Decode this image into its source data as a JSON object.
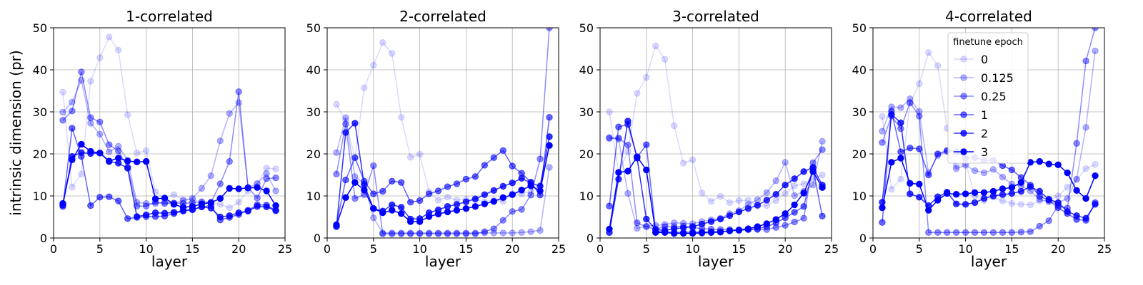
{
  "colors": {
    "series": "#0000ff",
    "grid": "#b0b0b0",
    "axis": "#000000"
  },
  "legend": {
    "title": "finetune epoch",
    "placement": "in-panel-4-upper-center"
  },
  "chart_data": [
    {
      "type": "line",
      "title": "1-correlated",
      "xlabel": "layer",
      "ylabel": "intrinsic dimension (pr)",
      "xlim": [
        0,
        25
      ],
      "ylim": [
        0,
        50
      ],
      "xticks": [
        0,
        5,
        10,
        15,
        20,
        25
      ],
      "yticks": [
        0,
        10,
        20,
        30,
        40,
        50
      ],
      "grid": true,
      "x": [
        1,
        2,
        3,
        4,
        5,
        6,
        7,
        8,
        9,
        10,
        11,
        12,
        13,
        14,
        15,
        16,
        17,
        18,
        19,
        20,
        21,
        22,
        23,
        24
      ],
      "series": [
        {
          "name": "0",
          "opacity": 0.15,
          "values": [
            34.7,
            12.1,
            15.2,
            37.3,
            42.9,
            47.8,
            44.7,
            29.3,
            20.2,
            20.8,
            11.0,
            9.5,
            10.3,
            9.1,
            9.2,
            8.4,
            8.3,
            8.0,
            7.2,
            8.5,
            11.2,
            13.0,
            16.6,
            16.4
          ]
        },
        {
          "name": "0.125",
          "opacity": 0.3,
          "values": [
            29.9,
            32.3,
            37.5,
            27.3,
            24.7,
            20.5,
            21.8,
            18.5,
            8.5,
            8.2,
            8.2,
            8.5,
            8.3,
            8.9,
            9.4,
            11.8,
            14.8,
            23.1,
            29.6,
            32.2,
            12.0,
            12.9,
            15.3,
            11.2
          ]
        },
        {
          "name": "0.25",
          "opacity": 0.45,
          "values": [
            28.0,
            30.2,
            39.5,
            28.6,
            27.6,
            22.2,
            20.7,
            16.9,
            7.6,
            7.6,
            8.5,
            8.2,
            8.3,
            8.2,
            8.4,
            8.6,
            8.5,
            12.9,
            18.2,
            34.8,
            12.0,
            9.5,
            14.1,
            14.3
          ]
        },
        {
          "name": "1",
          "opacity": 0.6,
          "values": [
            7.5,
            26.1,
            19.4,
            7.7,
            9.7,
            9.8,
            8.8,
            4.6,
            4.9,
            5.1,
            5.1,
            5.2,
            5.8,
            6.4,
            6.7,
            7.4,
            7.7,
            4.3,
            4.9,
            5.6,
            6.6,
            7.9,
            7.8,
            6.6
          ]
        },
        {
          "name": "2",
          "opacity": 0.8,
          "values": [
            7.8,
            19.4,
            20.3,
            20.1,
            20.2,
            18.2,
            17.8,
            16.6,
            5.1,
            5.5,
            6.0,
            5.9,
            6.1,
            6.5,
            6.8,
            7.4,
            7.1,
            5.0,
            5.3,
            6.0,
            6.4,
            7.5,
            7.4,
            6.5
          ]
        },
        {
          "name": "3",
          "opacity": 1.0,
          "values": [
            8.2,
            18.6,
            22.3,
            20.6,
            20.2,
            18.3,
            19.0,
            18.3,
            18.1,
            18.2,
            9.3,
            9.5,
            8.0,
            7.3,
            7.5,
            8.1,
            8.4,
            9.4,
            11.8,
            11.7,
            11.9,
            12.0,
            11.2,
            7.7
          ]
        }
      ]
    },
    {
      "type": "line",
      "title": "2-correlated",
      "xlabel": "layer",
      "ylabel": "",
      "xlim": [
        0,
        25
      ],
      "ylim": [
        0,
        50
      ],
      "xticks": [
        0,
        5,
        10,
        15,
        20,
        25
      ],
      "yticks": [
        0,
        10,
        20,
        30,
        40,
        50
      ],
      "grid": true,
      "x": [
        1,
        2,
        3,
        4,
        5,
        6,
        7,
        8,
        9,
        10,
        11,
        12,
        13,
        14,
        15,
        16,
        17,
        18,
        19,
        20,
        21,
        22,
        23,
        24
      ],
      "series": [
        {
          "name": "0",
          "opacity": 0.15,
          "values": [
            31.8,
            27.9,
            19.1,
            35.7,
            41.1,
            46.5,
            43.9,
            28.7,
            19.2,
            19.9,
            11.0,
            9.0,
            9.7,
            9.0,
            9.2,
            9.1,
            8.6,
            9.0,
            8.7,
            10.5,
            10.5,
            11.0,
            12.6,
            22.0
          ]
        },
        {
          "name": "0.125",
          "opacity": 0.3,
          "values": [
            20.3,
            28.6,
            14.6,
            13.0,
            4.8,
            1.2,
            1.2,
            1.2,
            1.2,
            1.2,
            1.2,
            1.2,
            1.2,
            1.2,
            1.2,
            1.2,
            1.2,
            1.2,
            1.2,
            1.2,
            1.3,
            1.5,
            1.8,
            16.8
          ]
        },
        {
          "name": "0.25",
          "opacity": 0.45,
          "values": [
            15.2,
            27.1,
            9.4,
            10.3,
            17.2,
            1.0,
            1.0,
            1.0,
            1.0,
            1.0,
            1.0,
            1.0,
            1.0,
            1.0,
            1.0,
            1.0,
            1.5,
            2.2,
            4.2,
            6.3,
            6.8,
            10.2,
            18.8,
            50.0
          ]
        },
        {
          "name": "1",
          "opacity": 0.6,
          "values": [
            3.2,
            13.8,
            19.1,
            13.5,
            10.5,
            11.1,
            13.5,
            13.2,
            8.5,
            8.9,
            10.5,
            11.2,
            12.2,
            12.9,
            14.0,
            14.6,
            17.3,
            19.1,
            20.8,
            17.1,
            15.4,
            13.3,
            10.2,
            28.7
          ]
        },
        {
          "name": "2",
          "opacity": 0.8,
          "values": [
            2.7,
            25.1,
            27.3,
            12.7,
            7.0,
            6.4,
            7.9,
            7.3,
            4.5,
            4.6,
            6.0,
            6.7,
            7.5,
            8.0,
            8.6,
            9.3,
            10.3,
            11.3,
            12.3,
            13.1,
            14.2,
            13.1,
            12.3,
            24.1
          ]
        },
        {
          "name": "3",
          "opacity": 1.0,
          "values": [
            3.0,
            9.6,
            13.2,
            11.4,
            7.0,
            6.0,
            6.6,
            5.8,
            3.9,
            3.9,
            5.1,
            5.7,
            6.2,
            6.6,
            7.0,
            7.5,
            8.1,
            8.7,
            9.6,
            10.3,
            11.4,
            12.4,
            11.2,
            22.0
          ]
        }
      ]
    },
    {
      "type": "line",
      "title": "3-correlated",
      "xlabel": "layer",
      "ylabel": "",
      "xlim": [
        0,
        25
      ],
      "ylim": [
        0,
        50
      ],
      "xticks": [
        0,
        5,
        10,
        15,
        20,
        25
      ],
      "yticks": [
        0,
        10,
        20,
        30,
        40,
        50
      ],
      "grid": true,
      "x": [
        1,
        2,
        3,
        4,
        5,
        6,
        7,
        8,
        9,
        10,
        11,
        12,
        13,
        14,
        15,
        16,
        17,
        18,
        19,
        20,
        21,
        22,
        23,
        24
      ],
      "series": [
        {
          "name": "0",
          "opacity": 0.15,
          "values": [
            30.0,
            15.5,
            20.6,
            34.4,
            38.2,
            45.7,
            42.5,
            26.7,
            17.8,
            18.6,
            10.7,
            8.7,
            9.9,
            8.4,
            8.9,
            9.0,
            7.6,
            7.7,
            8.9,
            10.6,
            12.4,
            12.9,
            14.1,
            15.0
          ]
        },
        {
          "name": "0.125",
          "opacity": 0.3,
          "values": [
            23.9,
            23.5,
            10.6,
            2.3,
            2.8,
            3.0,
            3.2,
            3.6,
            3.5,
            3.4,
            3.9,
            4.3,
            4.7,
            5.8,
            6.5,
            8.0,
            9.1,
            10.8,
            13.6,
            18.0,
            10.1,
            11.1,
            12.6,
            23.0
          ]
        },
        {
          "name": "0.25",
          "opacity": 0.45,
          "values": [
            23.7,
            23.8,
            22.1,
            3.6,
            2.7,
            2.1,
            2.7,
            2.7,
            2.8,
            2.5,
            2.2,
            2.1,
            2.0,
            2.0,
            1.9,
            2.0,
            2.0,
            2.0,
            2.5,
            3.0,
            3.8,
            4.7,
            17.9,
            21.0
          ]
        },
        {
          "name": "1",
          "opacity": 0.6,
          "values": [
            7.6,
            26.4,
            27.0,
            19.2,
            22.2,
            1.5,
            1.5,
            1.3,
            1.3,
            1.4,
            1.4,
            1.5,
            1.5,
            1.7,
            1.8,
            2.0,
            2.2,
            2.7,
            3.6,
            4.8,
            6.1,
            7.5,
            16.6,
            5.2
          ]
        },
        {
          "name": "2",
          "opacity": 0.8,
          "values": [
            1.3,
            14.0,
            27.8,
            19.0,
            4.5,
            2.0,
            1.8,
            2.2,
            2.4,
            2.7,
            3.3,
            3.9,
            4.5,
            5.3,
            6.2,
            7.0,
            7.8,
            9.0,
            10.4,
            12.6,
            14.1,
            15.8,
            16.8,
            12.6
          ]
        },
        {
          "name": "3",
          "opacity": 1.0,
          "values": [
            2.1,
            15.6,
            15.9,
            19.3,
            16.2,
            1.3,
            1.3,
            1.1,
            1.1,
            1.1,
            1.2,
            1.3,
            1.4,
            1.7,
            1.9,
            2.2,
            2.7,
            3.4,
            4.4,
            5.8,
            7.9,
            10.7,
            15.8,
            12.0
          ]
        }
      ]
    },
    {
      "type": "line",
      "title": "4-correlated",
      "xlabel": "layer",
      "ylabel": "",
      "xlim": [
        0,
        25
      ],
      "ylim": [
        0,
        50
      ],
      "xticks": [
        0,
        5,
        10,
        15,
        20,
        25
      ],
      "yticks": [
        0,
        10,
        20,
        30,
        40,
        50
      ],
      "grid": true,
      "x": [
        1,
        2,
        3,
        4,
        5,
        6,
        7,
        8,
        9,
        10,
        11,
        12,
        13,
        14,
        15,
        16,
        17,
        18,
        19,
        20,
        21,
        22,
        23,
        24
      ],
      "series": [
        {
          "name": "0",
          "opacity": 0.15,
          "values": [
            28.9,
            11.6,
            14.0,
            32.0,
            36.7,
            44.1,
            41.0,
            26.1,
            17.0,
            17.9,
            10.0,
            8.9,
            9.7,
            8.8,
            8.2,
            8.0,
            7.9,
            8.8,
            8.9,
            10.0,
            12.1,
            13.9,
            16.5,
            17.5
          ]
        },
        {
          "name": "0.125",
          "opacity": 0.3,
          "values": [
            25.4,
            31.2,
            31.0,
            33.1,
            30.1,
            15.5,
            19.6,
            20.6,
            16.5,
            17.3,
            16.0,
            15.5,
            16.3,
            14.5,
            12.8,
            12.4,
            11.2,
            9.2,
            8.6,
            8.4,
            9.4,
            14.0,
            26.3,
            44.5
          ]
        },
        {
          "name": "0.25",
          "opacity": 0.45,
          "values": [
            22.7,
            29.0,
            26.0,
            32.2,
            29.0,
            1.3,
            1.3,
            1.3,
            1.3,
            1.3,
            1.3,
            1.3,
            1.3,
            1.3,
            1.3,
            1.4,
            1.5,
            2.8,
            4.1,
            7.7,
            7.1,
            22.5,
            42.1,
            50.0
          ]
        },
        {
          "name": "1",
          "opacity": 0.6,
          "values": [
            3.7,
            30.2,
            20.5,
            21.4,
            21.2,
            15.0,
            20.0,
            20.8,
            20.5,
            19.0,
            19.1,
            18.5,
            18.5,
            17.2,
            16.2,
            14.4,
            12.6,
            9.9,
            9.0,
            7.2,
            5.8,
            4.4,
            4.2,
            8.4
          ]
        },
        {
          "name": "2",
          "opacity": 0.8,
          "values": [
            8.5,
            29.4,
            27.4,
            10.5,
            9.7,
            7.7,
            9.8,
            10.9,
            8.1,
            8.0,
            8.4,
            9.4,
            10.0,
            10.3,
            10.6,
            11.1,
            12.2,
            11.1,
            9.2,
            8.4,
            6.3,
            5.3,
            4.7,
            8.0
          ]
        },
        {
          "name": "3",
          "opacity": 1.0,
          "values": [
            7.2,
            18.0,
            19.0,
            13.0,
            12.8,
            6.6,
            9.0,
            10.6,
            10.4,
            10.5,
            10.8,
            10.8,
            11.1,
            11.7,
            12.0,
            13.2,
            18.0,
            18.2,
            17.6,
            17.4,
            15.5,
            11.3,
            9.4,
            14.8
          ]
        }
      ]
    }
  ]
}
